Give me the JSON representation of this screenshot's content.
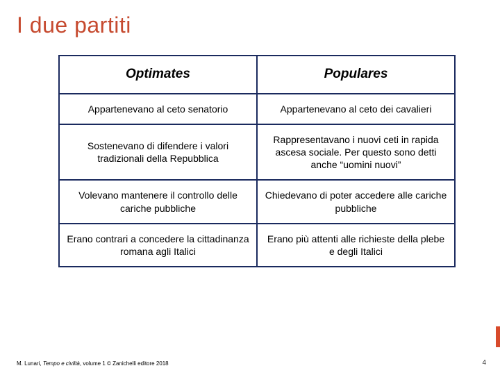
{
  "title": {
    "text": "I due partiti",
    "color": "#c64a2f"
  },
  "table": {
    "border_color": "#1a2a5e",
    "columns": [
      {
        "header": "Optimates"
      },
      {
        "header": "Populares"
      }
    ],
    "rows": [
      [
        "Appartenevano al ceto senatorio",
        "Appartenevano al ceto dei cavalieri"
      ],
      [
        "Sostenevano di difendere i valori tradizionali della Repubblica",
        "Rappresentavano i nuovi ceti in rapida ascesa sociale. Per questo sono detti anche “uomini nuovi”"
      ],
      [
        "Volevano mantenere il controllo delle cariche pubbliche",
        "Chiedevano di poter accedere alle cariche pubbliche"
      ],
      [
        "Erano contrari a concedere la cittadinanza romana agli Italici",
        "Erano più attenti alle richieste della plebe e degli Italici"
      ]
    ],
    "header_fontsize": 19,
    "cell_fontsize": 14,
    "text_color": "#000000",
    "background_color": "#ffffff"
  },
  "footer": {
    "author": "M. Lunari,",
    "book_title": "Tempo e civiltà",
    "rest": ", volume 1 © Zanichelli editore 2018"
  },
  "page_number": "4",
  "accent_color": "#d84a2b"
}
